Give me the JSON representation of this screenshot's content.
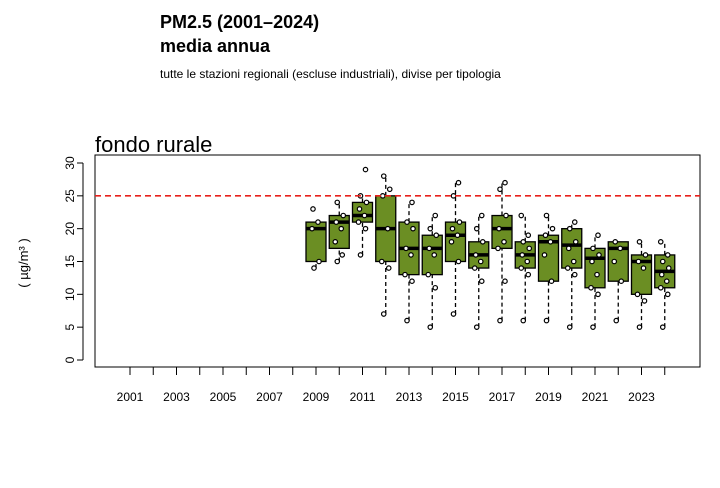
{
  "header": {
    "title": "PM2.5 (2001–2024)",
    "subtitle": "media annua",
    "caption": "tutte le stazioni regionali (escluse industriali), divise per tipologia"
  },
  "chart_data": {
    "type": "boxplot",
    "panel_title": "fondo rurale",
    "ylabel": "( µg/m³ )",
    "ylim": [
      0,
      30
    ],
    "yticks": [
      0,
      5,
      10,
      15,
      20,
      25,
      30
    ],
    "x_categories": [
      "2001",
      "2002",
      "2003",
      "2004",
      "2005",
      "2006",
      "2007",
      "2008",
      "2009",
      "2010",
      "2011",
      "2012",
      "2013",
      "2014",
      "2015",
      "2016",
      "2017",
      "2018",
      "2019",
      "2020",
      "2021",
      "2022",
      "2023",
      "2024"
    ],
    "x_tick_labels": [
      "2001",
      "2003",
      "2005",
      "2007",
      "2009",
      "2011",
      "2013",
      "2015",
      "2017",
      "2019",
      "2021",
      "2023"
    ],
    "reference_line": {
      "value": 25,
      "color": "#e8201c",
      "style": "dashed"
    },
    "box_color": "#6b8e23",
    "boxes": [
      {
        "x": "2009",
        "whisker_low": 14,
        "q1": 15,
        "median": 20,
        "q3": 21,
        "whisker_high": 21,
        "points": [
          14,
          15,
          20,
          21,
          23
        ]
      },
      {
        "x": "2010",
        "whisker_low": 15,
        "q1": 17,
        "median": 21,
        "q3": 22,
        "whisker_high": 24,
        "points": [
          15,
          16,
          18,
          20,
          21,
          22,
          24
        ]
      },
      {
        "x": "2011",
        "whisker_low": 16,
        "q1": 21,
        "median": 22,
        "q3": 24,
        "whisker_high": 25,
        "points": [
          16,
          20,
          21,
          22,
          23,
          24,
          25,
          29
        ]
      },
      {
        "x": "2012",
        "whisker_low": 7,
        "q1": 15,
        "median": 20,
        "q3": 25,
        "whisker_high": 28,
        "points": [
          7,
          14,
          15,
          20,
          25,
          26,
          28
        ]
      },
      {
        "x": "2013",
        "whisker_low": 6,
        "q1": 13,
        "median": 17,
        "q3": 21,
        "whisker_high": 24,
        "points": [
          6,
          12,
          13,
          16,
          17,
          20,
          21,
          24
        ]
      },
      {
        "x": "2014",
        "whisker_low": 5,
        "q1": 13,
        "median": 17,
        "q3": 19,
        "whisker_high": 22,
        "points": [
          5,
          11,
          13,
          16,
          17,
          19,
          20,
          22
        ]
      },
      {
        "x": "2015",
        "whisker_low": 7,
        "q1": 15,
        "median": 19,
        "q3": 21,
        "whisker_high": 27,
        "points": [
          7,
          15,
          18,
          19,
          20,
          21,
          25,
          27
        ]
      },
      {
        "x": "2016",
        "whisker_low": 5,
        "q1": 14,
        "median": 16,
        "q3": 18,
        "whisker_high": 22,
        "points": [
          5,
          12,
          14,
          15,
          16,
          18,
          20,
          22
        ]
      },
      {
        "x": "2017",
        "whisker_low": 6,
        "q1": 17,
        "median": 20,
        "q3": 22,
        "whisker_high": 27,
        "points": [
          6,
          12,
          17,
          18,
          20,
          22,
          26,
          27
        ]
      },
      {
        "x": "2018",
        "whisker_low": 6,
        "q1": 14,
        "median": 16,
        "q3": 18,
        "whisker_high": 22,
        "points": [
          6,
          13,
          14,
          15,
          16,
          17,
          18,
          19,
          22
        ]
      },
      {
        "x": "2019",
        "whisker_low": 6,
        "q1": 12,
        "median": 18,
        "q3": 19,
        "whisker_high": 22,
        "points": [
          6,
          12,
          16,
          18,
          19,
          20,
          22
        ]
      },
      {
        "x": "2020",
        "whisker_low": 5,
        "q1": 14,
        "median": 17.5,
        "q3": 20,
        "whisker_high": 21,
        "points": [
          5,
          13,
          14,
          15,
          17,
          18,
          20,
          21
        ]
      },
      {
        "x": "2021",
        "whisker_low": 5,
        "q1": 11,
        "median": 15.5,
        "q3": 17,
        "whisker_high": 19,
        "points": [
          5,
          10,
          11,
          13,
          15,
          16,
          17,
          19
        ]
      },
      {
        "x": "2022",
        "whisker_low": 6,
        "q1": 12,
        "median": 17,
        "q3": 18,
        "whisker_high": 18,
        "points": [
          6,
          12,
          15,
          17,
          18
        ]
      },
      {
        "x": "2023",
        "whisker_low": 5,
        "q1": 10,
        "median": 15,
        "q3": 16,
        "whisker_high": 18,
        "points": [
          5,
          9,
          10,
          14,
          15,
          16,
          18
        ]
      },
      {
        "x": "2024",
        "whisker_low": 5,
        "q1": 11,
        "median": 13.5,
        "q3": 16,
        "whisker_high": 18,
        "points": [
          5,
          10,
          11,
          12,
          13,
          14,
          15,
          16,
          18
        ]
      }
    ]
  }
}
